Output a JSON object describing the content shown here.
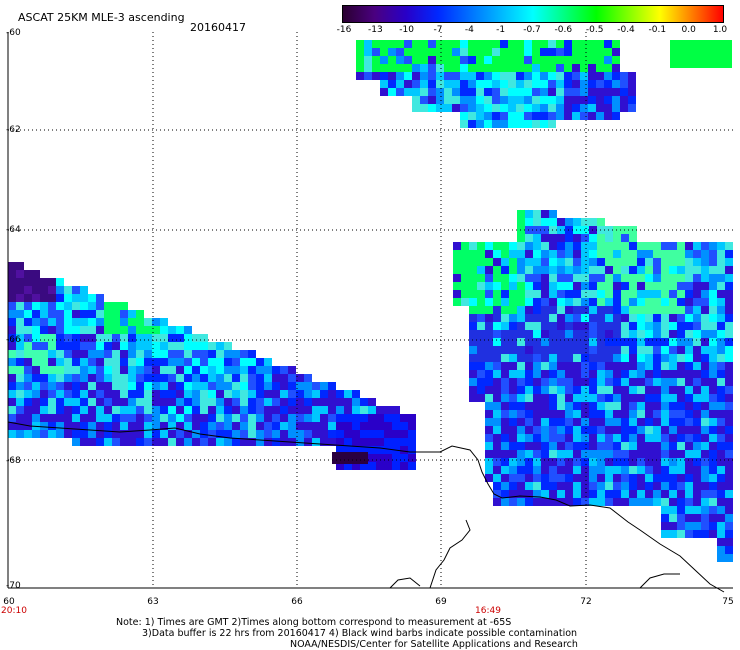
{
  "header": {
    "product": "ASCAT 25KM MLE-3 ascending",
    "date": "20160417"
  },
  "colorbar": {
    "labels": [
      "-16",
      "-13",
      "-10",
      "-7",
      "-4",
      "-1",
      "-0.7",
      "-0.6",
      "-0.5",
      "-0.4",
      "-0.1",
      "0.0",
      "1.0"
    ],
    "colors": [
      "#2a0030",
      "#4a0080",
      "#2800c8",
      "#0028ff",
      "#0070ff",
      "#00b8ff",
      "#00ffff",
      "#00ff80",
      "#00ff00",
      "#80ff00",
      "#ffff00",
      "#ff8000",
      "#ff0000"
    ]
  },
  "axes": {
    "lat_labels": [
      "-60",
      "-62",
      "-64",
      "-66",
      "-68",
      "-70"
    ],
    "lon_labels": [
      "60",
      "63",
      "66",
      "69",
      "72",
      "75"
    ]
  },
  "times": {
    "left": "20:10",
    "center": "16:49"
  },
  "notes": {
    "line1": "Note: 1) Times are GMT 2)Times along bottom correspond to measurement at -65S",
    "line2": "3)Data buffer is 22 hrs from 20160417 4) Black wind barbs indicate possible contamination",
    "line3": "NOAA/NESDIS/Center for Satellite Applications and Research"
  }
}
